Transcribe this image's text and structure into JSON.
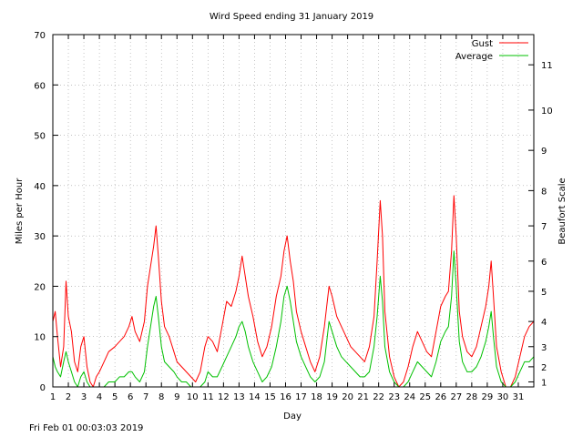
{
  "chart_data": {
    "type": "line",
    "title": "Wird Speed ending 31 January 2019",
    "xlabel": "Day",
    "ylabel": "Miles per Hour",
    "y2label": "Beaufort Scale",
    "xlim": [
      1,
      32
    ],
    "ylim": [
      0,
      70
    ],
    "x_ticks": [
      "1",
      "2",
      "3",
      "4",
      "5",
      "6",
      "7",
      "8",
      "9",
      "10",
      "11",
      "12",
      "13",
      "14",
      "15",
      "16",
      "17",
      "18",
      "19",
      "20",
      "21",
      "22",
      "23",
      "24",
      "25",
      "26",
      "27",
      "28",
      "29",
      "30",
      "31"
    ],
    "y_ticks": [
      0,
      10,
      20,
      30,
      40,
      50,
      60,
      70
    ],
    "y2_ticks": [
      {
        "label": "1",
        "mph": 1
      },
      {
        "label": "2",
        "mph": 4
      },
      {
        "label": "3",
        "mph": 8
      },
      {
        "label": "4",
        "mph": 13
      },
      {
        "label": "5",
        "mph": 19
      },
      {
        "label": "6",
        "mph": 25
      },
      {
        "label": "7",
        "mph": 32
      },
      {
        "label": "8",
        "mph": 39
      },
      {
        "label": "9",
        "mph": 47
      },
      {
        "label": "10",
        "mph": 55
      },
      {
        "label": "11",
        "mph": 64
      }
    ],
    "grid": true,
    "legend_position": "top-right",
    "series": [
      {
        "name": "Gust",
        "color": "#ff0000",
        "points": [
          [
            1.0,
            13
          ],
          [
            1.15,
            15
          ],
          [
            1.3,
            10
          ],
          [
            1.5,
            4
          ],
          [
            1.7,
            8
          ],
          [
            1.85,
            21
          ],
          [
            2.0,
            14
          ],
          [
            2.2,
            11
          ],
          [
            2.4,
            5
          ],
          [
            2.6,
            3
          ],
          [
            2.8,
            8
          ],
          [
            3.0,
            10
          ],
          [
            3.2,
            4
          ],
          [
            3.4,
            1
          ],
          [
            3.6,
            0
          ],
          [
            3.8,
            2
          ],
          [
            4.0,
            3
          ],
          [
            4.3,
            5
          ],
          [
            4.6,
            7
          ],
          [
            5.0,
            8
          ],
          [
            5.3,
            9
          ],
          [
            5.6,
            10
          ],
          [
            5.9,
            12
          ],
          [
            6.1,
            14
          ],
          [
            6.3,
            11
          ],
          [
            6.6,
            9
          ],
          [
            6.9,
            13
          ],
          [
            7.1,
            20
          ],
          [
            7.3,
            24
          ],
          [
            7.5,
            28
          ],
          [
            7.65,
            32
          ],
          [
            7.8,
            26
          ],
          [
            8.0,
            17
          ],
          [
            8.2,
            12
          ],
          [
            8.5,
            10
          ],
          [
            8.8,
            7
          ],
          [
            9.0,
            5
          ],
          [
            9.3,
            4
          ],
          [
            9.6,
            3
          ],
          [
            9.9,
            2
          ],
          [
            10.2,
            1
          ],
          [
            10.5,
            3
          ],
          [
            10.8,
            8
          ],
          [
            11.0,
            10
          ],
          [
            11.3,
            9
          ],
          [
            11.6,
            7
          ],
          [
            11.9,
            12
          ],
          [
            12.2,
            17
          ],
          [
            12.5,
            16
          ],
          [
            12.8,
            19
          ],
          [
            13.0,
            22
          ],
          [
            13.2,
            26
          ],
          [
            13.4,
            22
          ],
          [
            13.6,
            18
          ],
          [
            13.9,
            14
          ],
          [
            14.2,
            9
          ],
          [
            14.5,
            6
          ],
          [
            14.8,
            8
          ],
          [
            15.1,
            12
          ],
          [
            15.4,
            18
          ],
          [
            15.7,
            22
          ],
          [
            15.9,
            27
          ],
          [
            16.1,
            30
          ],
          [
            16.3,
            25
          ],
          [
            16.5,
            21
          ],
          [
            16.7,
            15
          ],
          [
            17.0,
            11
          ],
          [
            17.3,
            8
          ],
          [
            17.6,
            5
          ],
          [
            17.9,
            3
          ],
          [
            18.2,
            6
          ],
          [
            18.5,
            12
          ],
          [
            18.8,
            20
          ],
          [
            19.0,
            18
          ],
          [
            19.3,
            14
          ],
          [
            19.6,
            12
          ],
          [
            19.9,
            10
          ],
          [
            20.2,
            8
          ],
          [
            20.5,
            7
          ],
          [
            20.8,
            6
          ],
          [
            21.1,
            5
          ],
          [
            21.4,
            8
          ],
          [
            21.7,
            14
          ],
          [
            21.9,
            25
          ],
          [
            22.0,
            31
          ],
          [
            22.1,
            37
          ],
          [
            22.25,
            30
          ],
          [
            22.4,
            15
          ],
          [
            22.7,
            6
          ],
          [
            23.0,
            2
          ],
          [
            23.3,
            0
          ],
          [
            23.6,
            1
          ],
          [
            23.9,
            4
          ],
          [
            24.2,
            8
          ],
          [
            24.5,
            11
          ],
          [
            24.8,
            9
          ],
          [
            25.1,
            7
          ],
          [
            25.4,
            6
          ],
          [
            25.7,
            11
          ],
          [
            26.0,
            16
          ],
          [
            26.3,
            18
          ],
          [
            26.5,
            19
          ],
          [
            26.7,
            27
          ],
          [
            26.85,
            38
          ],
          [
            27.0,
            30
          ],
          [
            27.2,
            15
          ],
          [
            27.4,
            10
          ],
          [
            27.7,
            7
          ],
          [
            28.0,
            6
          ],
          [
            28.3,
            8
          ],
          [
            28.6,
            12
          ],
          [
            28.9,
            16
          ],
          [
            29.1,
            20
          ],
          [
            29.25,
            25
          ],
          [
            29.4,
            18
          ],
          [
            29.6,
            8
          ],
          [
            29.9,
            3
          ],
          [
            30.2,
            0
          ],
          [
            30.5,
            0
          ],
          [
            30.8,
            2
          ],
          [
            31.1,
            6
          ],
          [
            31.4,
            10
          ],
          [
            31.7,
            12
          ],
          [
            32.0,
            13
          ]
        ]
      },
      {
        "name": "Average",
        "color": "#00c000",
        "points": [
          [
            1.0,
            6
          ],
          [
            1.15,
            4
          ],
          [
            1.3,
            3
          ],
          [
            1.5,
            2
          ],
          [
            1.7,
            5
          ],
          [
            1.85,
            7
          ],
          [
            2.0,
            5
          ],
          [
            2.2,
            3
          ],
          [
            2.4,
            1
          ],
          [
            2.6,
            0
          ],
          [
            2.8,
            2
          ],
          [
            3.0,
            3
          ],
          [
            3.2,
            1
          ],
          [
            3.4,
            0
          ],
          [
            3.6,
            0
          ],
          [
            3.8,
            0
          ],
          [
            4.0,
            0
          ],
          [
            4.3,
            0
          ],
          [
            4.6,
            1
          ],
          [
            5.0,
            1
          ],
          [
            5.3,
            2
          ],
          [
            5.6,
            2
          ],
          [
            5.9,
            3
          ],
          [
            6.1,
            3
          ],
          [
            6.3,
            2
          ],
          [
            6.6,
            1
          ],
          [
            6.9,
            3
          ],
          [
            7.1,
            8
          ],
          [
            7.3,
            12
          ],
          [
            7.5,
            16
          ],
          [
            7.65,
            18
          ],
          [
            7.8,
            14
          ],
          [
            8.0,
            8
          ],
          [
            8.2,
            5
          ],
          [
            8.5,
            4
          ],
          [
            8.8,
            3
          ],
          [
            9.0,
            2
          ],
          [
            9.3,
            1
          ],
          [
            9.6,
            1
          ],
          [
            9.9,
            0
          ],
          [
            10.2,
            0
          ],
          [
            10.5,
            0
          ],
          [
            10.8,
            1
          ],
          [
            11.0,
            3
          ],
          [
            11.3,
            2
          ],
          [
            11.6,
            2
          ],
          [
            11.9,
            4
          ],
          [
            12.2,
            6
          ],
          [
            12.5,
            8
          ],
          [
            12.8,
            10
          ],
          [
            13.0,
            12
          ],
          [
            13.2,
            13
          ],
          [
            13.4,
            11
          ],
          [
            13.6,
            8
          ],
          [
            13.9,
            5
          ],
          [
            14.2,
            3
          ],
          [
            14.5,
            1
          ],
          [
            14.8,
            2
          ],
          [
            15.1,
            4
          ],
          [
            15.4,
            8
          ],
          [
            15.7,
            13
          ],
          [
            15.9,
            18
          ],
          [
            16.1,
            20
          ],
          [
            16.3,
            17
          ],
          [
            16.5,
            13
          ],
          [
            16.7,
            9
          ],
          [
            17.0,
            6
          ],
          [
            17.3,
            4
          ],
          [
            17.6,
            2
          ],
          [
            17.9,
            1
          ],
          [
            18.2,
            2
          ],
          [
            18.5,
            5
          ],
          [
            18.8,
            13
          ],
          [
            19.0,
            11
          ],
          [
            19.3,
            8
          ],
          [
            19.6,
            6
          ],
          [
            19.9,
            5
          ],
          [
            20.2,
            4
          ],
          [
            20.5,
            3
          ],
          [
            20.8,
            2
          ],
          [
            21.1,
            2
          ],
          [
            21.4,
            3
          ],
          [
            21.7,
            8
          ],
          [
            21.9,
            14
          ],
          [
            22.0,
            18
          ],
          [
            22.1,
            22
          ],
          [
            22.25,
            17
          ],
          [
            22.4,
            8
          ],
          [
            22.7,
            3
          ],
          [
            23.0,
            1
          ],
          [
            23.3,
            0
          ],
          [
            23.6,
            0
          ],
          [
            23.9,
            1
          ],
          [
            24.2,
            3
          ],
          [
            24.5,
            5
          ],
          [
            24.8,
            4
          ],
          [
            25.1,
            3
          ],
          [
            25.4,
            2
          ],
          [
            25.7,
            5
          ],
          [
            26.0,
            9
          ],
          [
            26.3,
            11
          ],
          [
            26.5,
            12
          ],
          [
            26.7,
            18
          ],
          [
            26.85,
            27
          ],
          [
            27.0,
            20
          ],
          [
            27.2,
            9
          ],
          [
            27.4,
            5
          ],
          [
            27.7,
            3
          ],
          [
            28.0,
            3
          ],
          [
            28.3,
            4
          ],
          [
            28.6,
            6
          ],
          [
            28.9,
            9
          ],
          [
            29.1,
            12
          ],
          [
            29.25,
            15
          ],
          [
            29.4,
            10
          ],
          [
            29.6,
            4
          ],
          [
            29.9,
            1
          ],
          [
            30.2,
            0
          ],
          [
            30.5,
            0
          ],
          [
            30.8,
            1
          ],
          [
            31.1,
            3
          ],
          [
            31.4,
            5
          ],
          [
            31.7,
            5
          ],
          [
            32.0,
            6
          ]
        ]
      }
    ]
  },
  "footer": {
    "timestamp": "Fri Feb 01 00:03:03 2019"
  }
}
